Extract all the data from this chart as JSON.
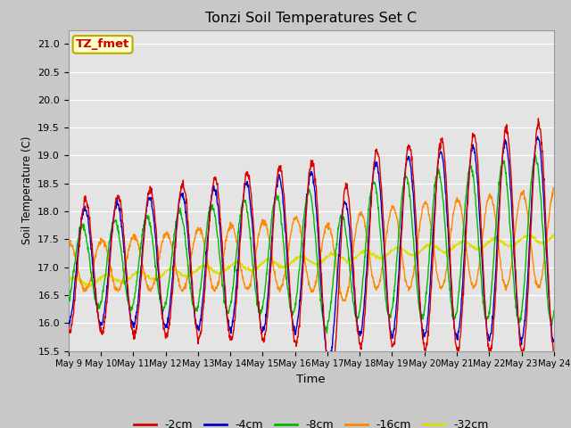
{
  "title": "Tonzi Soil Temperatures Set C",
  "xlabel": "Time",
  "ylabel": "Soil Temperature (C)",
  "ylim": [
    15.5,
    21.25
  ],
  "annotation": "TZ_fmet",
  "annotation_color": "#cc0000",
  "annotation_bg": "#ffffcc",
  "annotation_border": "#bbaa00",
  "series_colors": [
    "#dd0000",
    "#0000cc",
    "#00bb00",
    "#ff8800",
    "#dddd00"
  ],
  "series_labels": [
    "-2cm",
    "-4cm",
    "-8cm",
    "-16cm",
    "-32cm"
  ],
  "fig_facecolor": "#c8c8c8",
  "ax_facecolor": "#e4e4e4",
  "grid_color": "#ffffff",
  "yticks": [
    15.5,
    16.0,
    16.5,
    17.0,
    17.5,
    18.0,
    18.5,
    19.0,
    19.5,
    20.0,
    20.5,
    21.0
  ],
  "x_tick_labels": [
    "May 9",
    "May 10",
    "May 11",
    "May 12",
    "May 13",
    "May 14",
    "May 15",
    "May 16",
    "May 17",
    "May 18",
    "May 19",
    "May 20",
    "May 21",
    "May 22",
    "May 23",
    "May 24"
  ]
}
